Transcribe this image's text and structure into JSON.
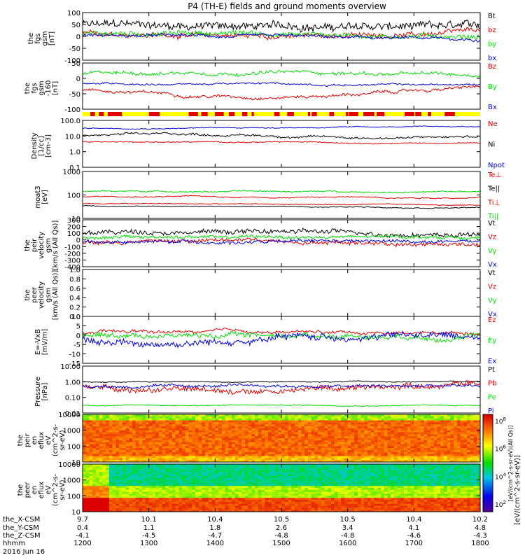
{
  "title": "P4 (TH-E) fields and ground moments overview",
  "colors": {
    "black": "#000000",
    "red": "#e00000",
    "green": "#00dd00",
    "blue": "#0000dd",
    "yellow": "#ffff00"
  },
  "chart_data": [
    {
      "type": "line",
      "ylabel": [
        "the",
        "fgs",
        "gsm",
        "[nT]"
      ],
      "yticks": [
        "100",
        "50",
        "0",
        "-50",
        "-100"
      ],
      "ylim": [
        -100,
        100
      ],
      "legend": [
        {
          "label": "Bt",
          "color": "#000000"
        },
        {
          "label": "bz",
          "color": "#e00000"
        },
        {
          "label": "by",
          "color": "#00dd00"
        },
        {
          "label": "bx",
          "color": "#0000dd"
        }
      ]
    },
    {
      "type": "line",
      "ylabel": [
        "the",
        "fgs",
        "gsm",
        "-160",
        "[nT]"
      ],
      "yticks": [
        "50",
        "0",
        "-50",
        "-100"
      ],
      "ylim": [
        -130,
        80
      ],
      "legend": [
        {
          "label": "Bz",
          "color": "#e00000"
        },
        {
          "label": "By",
          "color": "#00dd00"
        },
        {
          "label": "Bx",
          "color": "#0000dd"
        }
      ]
    },
    {
      "type": "line",
      "scale": "log",
      "ylabel": [
        "Density",
        "[1/cc]",
        "[cm-3]"
      ],
      "yticks": [
        "100.0",
        "10.0",
        "1.0",
        "0.1"
      ],
      "ylim": [
        0.1,
        100
      ],
      "legend": [
        {
          "label": "Ne",
          "color": "#e00000"
        },
        {
          "label": "Ni",
          "color": "#000000"
        },
        {
          "label": "Npot",
          "color": "#0000dd"
        }
      ]
    },
    {
      "type": "line",
      "scale": "log",
      "ylabel": [
        "moat3",
        "[eV]"
      ],
      "yticks": [
        "1000",
        "100",
        "10"
      ],
      "ylim": [
        10,
        10000
      ],
      "legend": [
        {
          "label": "Te⊥",
          "color": "#e00000"
        },
        {
          "label": "Te||",
          "color": "#000000"
        },
        {
          "label": "Ti⊥",
          "color": "#e00000"
        },
        {
          "label": "Ti||",
          "color": "#00dd00"
        }
      ]
    },
    {
      "type": "line",
      "ylabel": [
        "the",
        "peir",
        "velocity",
        "gsm",
        "[km/s (All Qs)]"
      ],
      "yticks": [
        "300",
        "200",
        "100",
        "0",
        "-100",
        "-200",
        "-300",
        "-400"
      ],
      "ylim": [
        -400,
        300
      ],
      "legend": [
        {
          "label": "Vt",
          "color": "#000000"
        },
        {
          "label": "Vz",
          "color": "#e00000"
        },
        {
          "label": "Vy",
          "color": "#00dd00"
        },
        {
          "label": "Vx",
          "color": "#0000dd"
        }
      ]
    },
    {
      "type": "line",
      "ylabel": [
        "the",
        "peer",
        "velocity",
        "gsm",
        "[km/s (All Qs)]"
      ],
      "yticks": [
        "1.0",
        "0.8",
        "0.6",
        "0.4",
        "0.2",
        "0.0"
      ],
      "ylim": [
        0,
        1
      ],
      "legend": [
        {
          "label": "Vt",
          "color": "#000000"
        },
        {
          "label": "Vz",
          "color": "#e00000"
        },
        {
          "label": "Vy",
          "color": "#00dd00"
        },
        {
          "label": "Vx",
          "color": "#0000dd"
        }
      ]
    },
    {
      "type": "line",
      "ylabel": [
        "E=-VxB",
        "[mV/m]"
      ],
      "yticks": [
        "10",
        "5",
        "0",
        "-5",
        "-10",
        "-15"
      ],
      "ylim": [
        -15,
        10
      ],
      "legend": [
        {
          "label": "Ez",
          "color": "#e00000"
        },
        {
          "label": "Ey",
          "color": "#00dd00"
        },
        {
          "label": "Ex",
          "color": "#0000dd"
        }
      ]
    },
    {
      "type": "line",
      "scale": "log",
      "ylabel": [
        "Pressure",
        "[nPa]"
      ],
      "yticks": [
        "10.00",
        "1.00",
        "0.10",
        "0.01"
      ],
      "ylim": [
        0.01,
        10
      ],
      "legend": [
        {
          "label": "Pt",
          "color": "#000000"
        },
        {
          "label": "Pb",
          "color": "#e00000"
        },
        {
          "label": "Pe",
          "color": "#00dd00"
        },
        {
          "label": "Pi",
          "color": "#0000dd"
        }
      ]
    },
    {
      "type": "heatmap",
      "ylabel": [
        "the",
        "peir",
        "en",
        "eflux",
        "eV",
        "(cm^2-s-",
        "sr-eV)"
      ],
      "yticks": [
        "10000",
        "1000",
        "100",
        "10"
      ]
    },
    {
      "type": "heatmap",
      "ylabel": [
        "the",
        "peer",
        "en",
        "eflux",
        "eV",
        "(cm^2-s-",
        "sr-eV)"
      ],
      "yticks": [
        "10000",
        "1000",
        "100",
        "10"
      ]
    }
  ],
  "colorbar": {
    "label": "[eV/(cm^2-s-sr-eV)]",
    "label2": "[eV/(cm^2-s-sr-eV)(All Qs)]",
    "ticks": [
      "10^8",
      "10^6",
      "10^4",
      "10^2"
    ]
  },
  "xaxis": {
    "rows": [
      {
        "label": "the_X-CSM",
        "values": [
          "9.7",
          "10.1",
          "10.4",
          "10.5",
          "10.5",
          "10.4",
          "10.2"
        ]
      },
      {
        "label": "the_Y-CSM",
        "values": [
          "0.4",
          "1.1",
          "1.8",
          "2.6",
          "3.4",
          "4.1",
          "4.8"
        ]
      },
      {
        "label": "the_Z-CSM",
        "values": [
          "-4.1",
          "-4.5",
          "-4.7",
          "-4.8",
          "-4.8",
          "-4.6",
          "-4.3"
        ]
      },
      {
        "label": "hhmm",
        "values": [
          "1200",
          "1300",
          "1400",
          "1500",
          "1600",
          "1700",
          "1800"
        ]
      }
    ],
    "date": "2016 Jun 16"
  }
}
